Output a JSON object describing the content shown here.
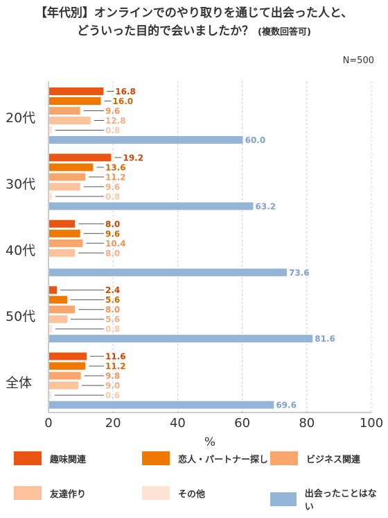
{
  "chart_data": {
    "type": "bar",
    "orientation": "horizontal",
    "title_line1": "【年代別】オンラインでのやり取りを通じて出会った人と、",
    "title_line2": "どういった目的で会いましたか？",
    "title_note": "(複数回答可)",
    "sample_size": "N=500",
    "xlabel": "%",
    "xlim": [
      0,
      100
    ],
    "xticks": [
      "0",
      "20",
      "40",
      "60",
      "80",
      "100"
    ],
    "grid": "vertical-dashed",
    "legend_position": "bottom",
    "categories": [
      "20代",
      "30代",
      "40代",
      "50代",
      "全体"
    ],
    "series": [
      {
        "name": "趣味関連",
        "color": "#ea5514",
        "values": [
          16.8,
          19.2,
          8.0,
          2.4,
          11.6
        ],
        "labels": [
          "16.8",
          "19.2",
          "8.0",
          "2.4",
          "11.6"
        ]
      },
      {
        "name": "恋人・パートナー探し",
        "color": "#ee7800",
        "values": [
          16.0,
          13.6,
          9.6,
          5.6,
          11.2
        ],
        "labels": [
          "16.0",
          "13.6",
          "9.6",
          "5.6",
          "11.2"
        ]
      },
      {
        "name": "ビジネス関連",
        "color": "#f8a66c",
        "values": [
          9.6,
          11.2,
          10.4,
          8.0,
          9.8
        ],
        "labels": [
          "9.6",
          "11.2",
          "10.4",
          "8.0",
          "9.8"
        ]
      },
      {
        "name": "友達作り",
        "color": "#fbc29b",
        "values": [
          12.8,
          9.6,
          8.0,
          5.6,
          9.0
        ],
        "labels": [
          "12.8",
          "9.6",
          "8.0",
          "5.6",
          "9.0"
        ]
      },
      {
        "name": "その他",
        "color": "#fde3d4",
        "values": [
          0.8,
          0.8,
          0,
          0.8,
          0.6
        ],
        "labels": [
          "0.8",
          "0.8",
          "",
          "0.8",
          "0.6"
        ]
      },
      {
        "name": "出会ったことはない",
        "color": "#95b5d8",
        "values": [
          60.0,
          63.2,
          73.6,
          81.6,
          69.6
        ],
        "labels": [
          "60.0",
          "63.2",
          "73.6",
          "81.6",
          "69.6"
        ]
      }
    ]
  }
}
